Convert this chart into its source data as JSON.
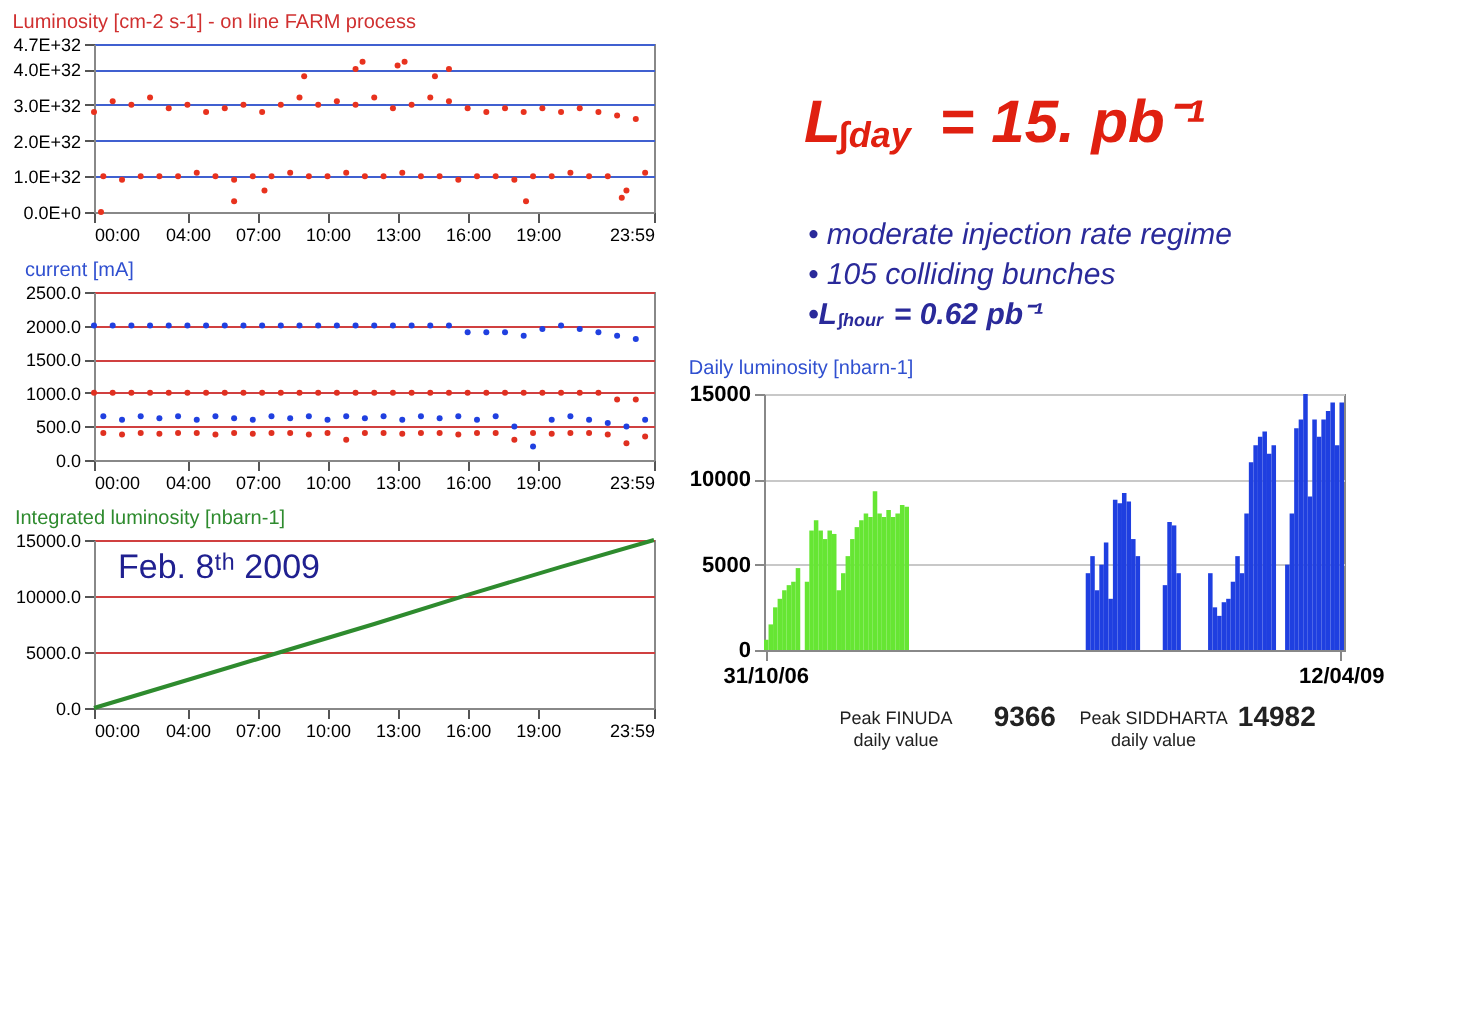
{
  "chart_data": [
    {
      "type": "scatter",
      "title": "Luminosity [cm-2 s-1] - on line FARM process",
      "xlim": [
        0,
        23.98
      ],
      "xticks": [
        {
          "value": 0,
          "label": "00:00"
        },
        {
          "value": 4,
          "label": "04:00"
        },
        {
          "value": 7,
          "label": "07:00"
        },
        {
          "value": 10,
          "label": "10:00"
        },
        {
          "value": 13,
          "label": "13:00"
        },
        {
          "value": 16,
          "label": "16:00"
        },
        {
          "value": 19,
          "label": "19:00"
        },
        {
          "value": 23.98,
          "label": "23:59"
        }
      ],
      "ylim": [
        0,
        4.7e+32
      ],
      "yticks": [
        {
          "value": 0,
          "label": "0.0E+0"
        },
        {
          "value": 1e+32,
          "label": "1.0E+32"
        },
        {
          "value": 2e+32,
          "label": "2.0E+32"
        },
        {
          "value": 3e+32,
          "label": "3.0E+32"
        },
        {
          "value": 4e+32,
          "label": "4.0E+32"
        },
        {
          "value": 4.7e+32,
          "label": "4.7E+32"
        }
      ],
      "grid": "y",
      "series": [
        {
          "color": "#e8321e",
          "x": [
            0,
            0.4,
            0.8,
            1.2,
            1.6,
            2,
            2.4,
            2.8,
            3.2,
            3.6,
            4,
            4.4,
            4.8,
            5.2,
            5.6,
            6,
            6.4,
            6.8,
            7.2,
            7.6,
            8,
            8.4,
            8.8,
            9.2,
            9.6,
            10,
            10.4,
            10.8,
            11.2,
            11.6,
            12,
            12.4,
            12.8,
            13.2,
            13.6,
            14,
            14.4,
            14.8,
            15.2,
            15.6,
            16,
            16.4,
            16.8,
            17.2,
            17.6,
            18,
            18.4,
            18.8,
            19.2,
            19.6,
            20,
            20.4,
            20.8,
            21.2,
            21.6,
            22,
            22.4,
            22.8,
            23.2,
            23.6
          ],
          "values": [
            2.8e+32,
            1e+32,
            3.1e+32,
            9e+31,
            3e+32,
            1e+32,
            3.2e+32,
            1e+32,
            2.9e+32,
            1e+32,
            3e+32,
            1.1e+32,
            2.8e+32,
            1e+32,
            2.9e+32,
            9e+31,
            3e+32,
            1e+32,
            2.8e+32,
            1e+32,
            3e+32,
            1.1e+32,
            3.2e+32,
            1e+32,
            3e+32,
            1e+32,
            3.1e+32,
            1.1e+32,
            3e+32,
            1e+32,
            3.2e+32,
            1e+32,
            2.9e+32,
            1.1e+32,
            3e+32,
            1e+32,
            3.2e+32,
            1e+32,
            3.1e+32,
            9e+31,
            2.9e+32,
            1e+32,
            2.8e+32,
            1e+32,
            2.9e+32,
            9e+31,
            2.8e+32,
            1e+32,
            2.9e+32,
            1e+32,
            2.8e+32,
            1.1e+32,
            2.9e+32,
            1e+32,
            2.8e+32,
            1e+32,
            2.7e+32,
            6e+31,
            2.6e+32,
            1.1e+32
          ]
        },
        {
          "color": "#e8321e",
          "x": [
            0.3,
            6.0,
            7.3,
            9.0,
            11.2,
            11.5,
            13.0,
            13.3,
            14.6,
            15.2,
            18.5,
            22.6
          ],
          "values": [
            0,
            3e+31,
            6e+31,
            3.8e+32,
            4e+32,
            4.2e+32,
            4.1e+32,
            4.2e+32,
            3.8e+32,
            4e+32,
            3e+31,
            4e+31
          ]
        }
      ]
    },
    {
      "type": "scatter",
      "title": "current [mA]",
      "xlim": [
        0,
        23.98
      ],
      "xticks": [
        {
          "value": 0,
          "label": "00:00"
        },
        {
          "value": 4,
          "label": "04:00"
        },
        {
          "value": 7,
          "label": "07:00"
        },
        {
          "value": 10,
          "label": "10:00"
        },
        {
          "value": 13,
          "label": "13:00"
        },
        {
          "value": 16,
          "label": "16:00"
        },
        {
          "value": 19,
          "label": "19:00"
        },
        {
          "value": 23.98,
          "label": "23:59"
        }
      ],
      "ylim": [
        0,
        2500
      ],
      "yticks": [
        {
          "value": 0,
          "label": "0.0"
        },
        {
          "value": 500,
          "label": "500.0"
        },
        {
          "value": 1000,
          "label": "1000.0"
        },
        {
          "value": 1500,
          "label": "1500.0"
        },
        {
          "value": 2000,
          "label": "2000.0"
        },
        {
          "value": 2500,
          "label": "2500.0"
        }
      ],
      "grid": "y",
      "x": [
        0,
        0.4,
        0.8,
        1.2,
        1.6,
        2,
        2.4,
        2.8,
        3.2,
        3.6,
        4,
        4.4,
        4.8,
        5.2,
        5.6,
        6,
        6.4,
        6.8,
        7.2,
        7.6,
        8,
        8.4,
        8.8,
        9.2,
        9.6,
        10,
        10.4,
        10.8,
        11.2,
        11.6,
        12,
        12.4,
        12.8,
        13.2,
        13.6,
        14,
        14.4,
        14.8,
        15.2,
        15.6,
        16,
        16.4,
        16.8,
        17.2,
        17.6,
        18,
        18.4,
        18.8,
        19.2,
        19.6,
        20,
        20.4,
        20.8,
        21.2,
        21.6,
        22,
        22.4,
        22.8,
        23.2,
        23.6
      ],
      "series": [
        {
          "color": "#e03020",
          "values": [
            1000,
            400,
            1000,
            380,
            1000,
            400,
            1000,
            390,
            1000,
            400,
            1000,
            400,
            1000,
            380,
            1000,
            400,
            1000,
            390,
            1000,
            400,
            1000,
            400,
            1000,
            380,
            1000,
            400,
            1000,
            300,
            1000,
            400,
            1000,
            400,
            1000,
            390,
            1000,
            400,
            1000,
            400,
            1000,
            380,
            1000,
            400,
            1000,
            400,
            1000,
            300,
            1000,
            400,
            1000,
            390,
            1000,
            400,
            1000,
            400,
            1000,
            380,
            900,
            250,
            900,
            350
          ]
        },
        {
          "color": "#2040e0",
          "values": [
            2000,
            650,
            2000,
            600,
            2000,
            650,
            2000,
            620,
            2000,
            650,
            2000,
            600,
            2000,
            650,
            2000,
            620,
            2000,
            600,
            2000,
            650,
            2000,
            620,
            2000,
            650,
            2000,
            600,
            2000,
            650,
            2000,
            620,
            2000,
            650,
            2000,
            600,
            2000,
            650,
            2000,
            620,
            2000,
            650,
            1900,
            600,
            1900,
            650,
            1900,
            500,
            1850,
            200,
            1950,
            600,
            2000,
            650,
            1950,
            600,
            1900,
            550,
            1850,
            500,
            1800,
            600
          ]
        }
      ]
    },
    {
      "type": "line",
      "title": "Integrated luminosity  [nbarn-1]",
      "xlim": [
        0,
        23.98
      ],
      "xticks": [
        {
          "value": 0,
          "label": "00:00"
        },
        {
          "value": 4,
          "label": "04:00"
        },
        {
          "value": 7,
          "label": "07:00"
        },
        {
          "value": 10,
          "label": "10:00"
        },
        {
          "value": 13,
          "label": "13:00"
        },
        {
          "value": 16,
          "label": "16:00"
        },
        {
          "value": 19,
          "label": "19:00"
        },
        {
          "value": 23.98,
          "label": "23:59"
        }
      ],
      "ylim": [
        0,
        15000
      ],
      "yticks": [
        {
          "value": 0,
          "label": "0.0"
        },
        {
          "value": 5000,
          "label": "5000.0"
        },
        {
          "value": 10000,
          "label": "10000.0"
        },
        {
          "value": 15000,
          "label": "15000.0"
        }
      ],
      "grid": "y",
      "annotations": [
        "Feb. 8ᵗʰ 2009"
      ],
      "x": [
        0,
        4,
        8,
        12,
        16,
        20,
        23.98
      ],
      "series": [
        {
          "color": "#2e8b2e",
          "values": [
            0,
            2500,
            5000,
            7500,
            10100,
            12600,
            15000
          ]
        }
      ]
    },
    {
      "type": "bar",
      "title": "Daily luminosity [nbarn-1]",
      "ylim": [
        0,
        15000
      ],
      "yticks": [
        0,
        5000,
        10000,
        15000
      ],
      "grid": "y",
      "annotations": [
        "Peak FINUDA daily value",
        "9366",
        "Peak SIDDHARTA daily value",
        "14982"
      ],
      "categories": [
        "31/10/06",
        null,
        null,
        null,
        null,
        null,
        null,
        null,
        null,
        null,
        null,
        null,
        null,
        null,
        null,
        null,
        null,
        null,
        null,
        null,
        null,
        null,
        null,
        null,
        null,
        null,
        null,
        null,
        null,
        null,
        null,
        null,
        null,
        null,
        null,
        null,
        null,
        null,
        null,
        null,
        null,
        null,
        null,
        null,
        null,
        null,
        null,
        null,
        null,
        null,
        null,
        null,
        null,
        null,
        null,
        null,
        null,
        null,
        null,
        null,
        null,
        null,
        null,
        null,
        null,
        null,
        null,
        null,
        null,
        null,
        null,
        null,
        null,
        null,
        null,
        null,
        null,
        null,
        null,
        null,
        null,
        null,
        null,
        null,
        null,
        null,
        null,
        null,
        null,
        null,
        null,
        null,
        null,
        null,
        null,
        null,
        null,
        null,
        null,
        null,
        null,
        null,
        null,
        null,
        null,
        null,
        null,
        null,
        null,
        null,
        null,
        null,
        null,
        null,
        null,
        null,
        null,
        null,
        null,
        null,
        null,
        null,
        null,
        null,
        null,
        null,
        null,
        "12/04/09"
      ],
      "series": [
        {
          "color": "#66e633",
          "values": [
            600,
            1500,
            2500,
            3000,
            3500,
            3800,
            4000,
            4800,
            null,
            4000,
            7000,
            7600,
            7000,
            6500,
            7000,
            6800,
            3500,
            4500,
            5500,
            6500,
            7200,
            7600,
            8000,
            7800,
            9300,
            8000,
            7800,
            8200,
            7800,
            8000,
            8500,
            8400,
            null,
            null,
            null,
            null,
            null,
            null,
            null,
            null,
            null,
            null,
            null,
            null,
            null,
            null,
            null,
            null,
            null,
            null,
            null,
            null,
            null,
            null,
            null,
            null,
            null,
            null,
            null,
            null,
            null,
            null,
            null,
            null,
            null,
            null,
            null,
            null,
            null,
            null,
            null,
            null,
            null,
            null,
            null,
            null,
            null,
            null,
            null,
            null,
            null,
            null,
            null,
            null,
            null,
            null,
            null,
            null,
            null,
            null,
            null,
            null,
            null,
            null,
            null,
            null,
            null,
            null,
            null,
            null,
            null,
            null,
            null,
            null,
            null,
            null,
            null,
            null,
            null,
            null,
            null,
            null,
            null,
            null,
            null,
            null,
            null,
            null,
            null,
            null,
            null,
            null,
            null,
            null,
            null,
            null,
            null,
            null
          ]
        },
        {
          "color": "#1f3fe0",
          "values": [
            null,
            null,
            null,
            null,
            null,
            null,
            null,
            null,
            null,
            null,
            null,
            null,
            null,
            null,
            null,
            null,
            null,
            null,
            null,
            null,
            null,
            null,
            null,
            null,
            null,
            null,
            null,
            null,
            null,
            null,
            null,
            null,
            null,
            null,
            null,
            null,
            null,
            null,
            null,
            null,
            null,
            null,
            null,
            null,
            null,
            null,
            null,
            null,
            null,
            null,
            null,
            null,
            null,
            null,
            null,
            null,
            null,
            null,
            null,
            null,
            null,
            null,
            null,
            null,
            null,
            null,
            null,
            null,
            null,
            null,
            null,
            4500,
            5500,
            3500,
            5000,
            6300,
            3000,
            8800,
            8600,
            9200,
            8700,
            6500,
            5500,
            null,
            null,
            null,
            null,
            null,
            3800,
            7500,
            7300,
            4500,
            null,
            null,
            null,
            null,
            null,
            null,
            4500,
            2500,
            2000,
            2800,
            3000,
            4000,
            5500,
            4500,
            8000,
            11000,
            12000,
            12500,
            12800,
            11500,
            12000,
            null,
            null,
            5000,
            8000,
            13000,
            13500,
            15000,
            9000,
            13500,
            12500,
            13500,
            14000,
            14500,
            12000,
            14500
          ]
        }
      ]
    },
    {
      "type": "other",
      "title": "L$_{∫day}$ = 15. pb⁻¹",
      "annotations": [
        "• moderate injection rate regime",
        "• 105 colliding bunches",
        "•L$_{∫hour}$ = 0.62 pb⁻¹"
      ]
    }
  ]
}
